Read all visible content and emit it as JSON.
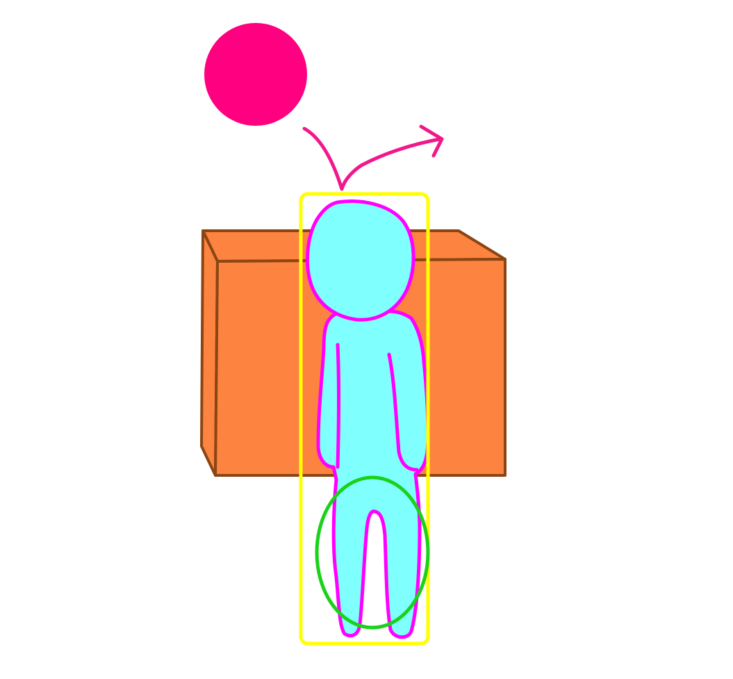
{
  "scene": {
    "background": "#ffffff",
    "colors": {
      "ball": "#ff0080",
      "arrow": "#f0188c",
      "box_face": "#fd8340",
      "box_edge": "#8b4513",
      "figure_fill": "#80ffff",
      "figure_outline": "#ff00ff",
      "bounding_box": "#ffff00",
      "highlight_circle": "#19d219"
    },
    "objects": [
      {
        "kind": "ball",
        "icon": "circle-shape"
      },
      {
        "kind": "arrow",
        "icon": "curved-arrow-shape"
      },
      {
        "kind": "box",
        "icon": "box-shape"
      },
      {
        "kind": "figure",
        "icon": "person-shape"
      },
      {
        "kind": "bounding-box",
        "icon": "rectangle-outline-shape"
      },
      {
        "kind": "highlight-circle",
        "icon": "ellipse-outline-shape"
      }
    ]
  }
}
